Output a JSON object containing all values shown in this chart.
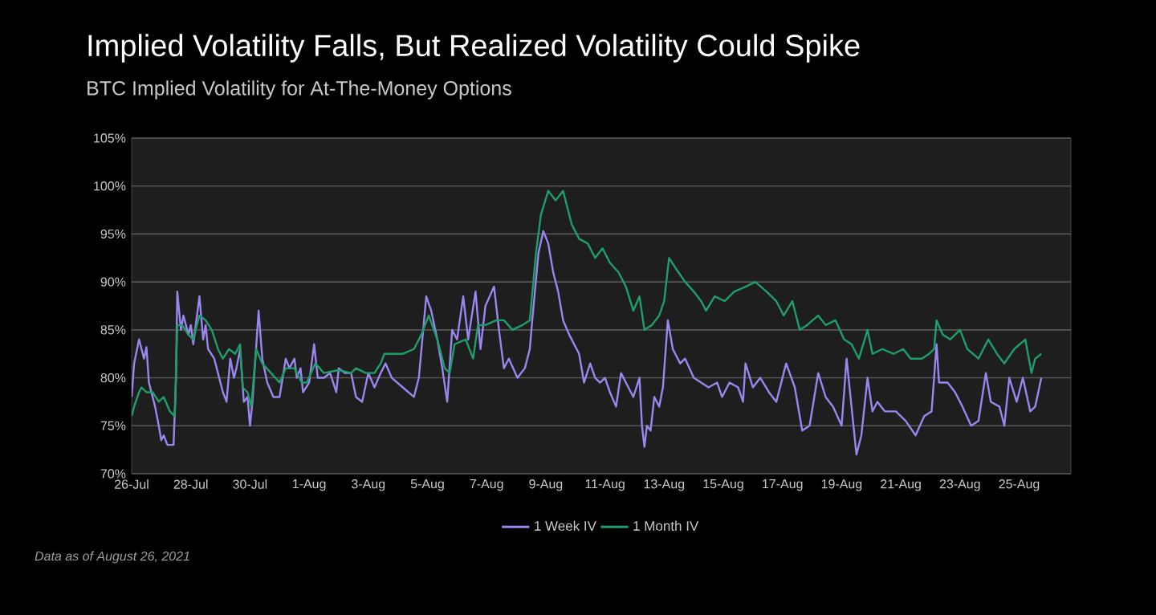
{
  "chart_data": {
    "type": "line",
    "title": "Implied Volatility Falls, But Realized Volatility Could Spike",
    "subtitle": "BTC Implied Volatility for At-The-Money Options",
    "annotations": [
      "Data as of August 26, 2021"
    ],
    "xlim": [
      "2021-07-26",
      "2021-08-26T18:00"
    ],
    "xticks": [
      {
        "value": "2021-07-26",
        "label": "26-Jul"
      },
      {
        "value": "2021-07-28",
        "label": "28-Jul"
      },
      {
        "value": "2021-07-30",
        "label": "30-Jul"
      },
      {
        "value": "2021-08-01",
        "label": "1-Aug"
      },
      {
        "value": "2021-08-03",
        "label": "3-Aug"
      },
      {
        "value": "2021-08-05",
        "label": "5-Aug"
      },
      {
        "value": "2021-08-07",
        "label": "7-Aug"
      },
      {
        "value": "2021-08-09",
        "label": "9-Aug"
      },
      {
        "value": "2021-08-11",
        "label": "11-Aug"
      },
      {
        "value": "2021-08-13",
        "label": "13-Aug"
      },
      {
        "value": "2021-08-15",
        "label": "15-Aug"
      },
      {
        "value": "2021-08-17",
        "label": "17-Aug"
      },
      {
        "value": "2021-08-19",
        "label": "19-Aug"
      },
      {
        "value": "2021-08-21",
        "label": "21-Aug"
      },
      {
        "value": "2021-08-23",
        "label": "23-Aug"
      },
      {
        "value": "2021-08-25",
        "label": "25-Aug"
      }
    ],
    "ylim": [
      70,
      105
    ],
    "yticks": [
      {
        "value": 70,
        "label": "70%"
      },
      {
        "value": 75,
        "label": "75%"
      },
      {
        "value": 80,
        "label": "80%"
      },
      {
        "value": 85,
        "label": "85%"
      },
      {
        "value": 90,
        "label": "90%"
      },
      {
        "value": 95,
        "label": "95%"
      },
      {
        "value": 100,
        "label": "100%"
      },
      {
        "value": 105,
        "label": "105%"
      }
    ],
    "grid": "y",
    "legend": "bottom",
    "series": [
      {
        "name": "1 Week IV",
        "color": "#9b86f0",
        "x": [
          "2021-07-26T00:00",
          "2021-07-26T02:00",
          "2021-07-26T06:00",
          "2021-07-26T10:00",
          "2021-07-26T12:00",
          "2021-07-26T14:00",
          "2021-07-26T19:00",
          "2021-07-26T22:00",
          "2021-07-27T00:00",
          "2021-07-27T02:00",
          "2021-07-27T05:00",
          "2021-07-27T10:00",
          "2021-07-27T12:00",
          "2021-07-27T13:00",
          "2021-07-27T16:00",
          "2021-07-27T18:00",
          "2021-07-27T22:00",
          "2021-07-28T00:00",
          "2021-07-28T02:00",
          "2021-07-28T07:00",
          "2021-07-28T10:00",
          "2021-07-28T12:00",
          "2021-07-28T14:00",
          "2021-07-28T19:00",
          "2021-07-28T23:00",
          "2021-07-29T02:00",
          "2021-07-29T05:00",
          "2021-07-29T08:00",
          "2021-07-29T11:00",
          "2021-07-29T13:00",
          "2021-07-29T16:00",
          "2021-07-29T19:00",
          "2021-07-29T22:00",
          "2021-07-30T00:00",
          "2021-07-30T02:00",
          "2021-07-30T07:00",
          "2021-07-30T10:00",
          "2021-07-30T14:00",
          "2021-07-30T19:00",
          "2021-07-31T00:00",
          "2021-07-31T05:00",
          "2021-07-31T08:00",
          "2021-07-31T12:00",
          "2021-07-31T14:00",
          "2021-07-31T17:00",
          "2021-07-31T19:00",
          "2021-08-01T00:00",
          "2021-08-01T04:00",
          "2021-08-01T07:00",
          "2021-08-01T12:00",
          "2021-08-01T17:00",
          "2021-08-01T22:00",
          "2021-08-02T00:00",
          "2021-08-02T05:00",
          "2021-08-02T10:00",
          "2021-08-02T14:00",
          "2021-08-02T19:00",
          "2021-08-03T00:00",
          "2021-08-03T05:00",
          "2021-08-03T10:00",
          "2021-08-03T14:00",
          "2021-08-03T19:00",
          "2021-08-04T04:00",
          "2021-08-04T13:00",
          "2021-08-04T17:00",
          "2021-08-04T23:00",
          "2021-08-05T03:00",
          "2021-08-05T08:00",
          "2021-08-05T12:00",
          "2021-08-05T16:00",
          "2021-08-05T20:00",
          "2021-08-06T00:00",
          "2021-08-06T05:00",
          "2021-08-06T09:00",
          "2021-08-06T15:00",
          "2021-08-06T19:00",
          "2021-08-06T23:00",
          "2021-08-07T06:00",
          "2021-08-07T10:00",
          "2021-08-07T14:00",
          "2021-08-07T18:00",
          "2021-08-08T01:00",
          "2021-08-08T07:00",
          "2021-08-08T11:00",
          "2021-08-08T13:00",
          "2021-08-08T18:00",
          "2021-08-08T22:00",
          "2021-08-09T02:00",
          "2021-08-09T06:00",
          "2021-08-09T10:00",
          "2021-08-09T14:00",
          "2021-08-09T19:00",
          "2021-08-09T23:00",
          "2021-08-10T03:00",
          "2021-08-10T07:00",
          "2021-08-10T12:00",
          "2021-08-10T16:00",
          "2021-08-10T20:00",
          "2021-08-11T00:00",
          "2021-08-11T04:00",
          "2021-08-11T09:00",
          "2021-08-11T13:00",
          "2021-08-11T19:00",
          "2021-08-11T23:00",
          "2021-08-12T04:00",
          "2021-08-12T06:00",
          "2021-08-12T08:00",
          "2021-08-12T10:00",
          "2021-08-12T13:00",
          "2021-08-12T16:00",
          "2021-08-12T20:00",
          "2021-08-12T23:00",
          "2021-08-13T03:00",
          "2021-08-13T07:00",
          "2021-08-13T13:00",
          "2021-08-13T17:00",
          "2021-08-14T00:00",
          "2021-08-14T06:00",
          "2021-08-14T12:00",
          "2021-08-14T19:00",
          "2021-08-14T23:00",
          "2021-08-15T05:00",
          "2021-08-15T12:00",
          "2021-08-15T16:00",
          "2021-08-15T18:00",
          "2021-08-16T00:00",
          "2021-08-16T06:00",
          "2021-08-16T13:00",
          "2021-08-16T19:00",
          "2021-08-17T03:00",
          "2021-08-17T10:00",
          "2021-08-17T16:00",
          "2021-08-17T22:00",
          "2021-08-18T05:00",
          "2021-08-18T11:00",
          "2021-08-18T17:00",
          "2021-08-19T00:00",
          "2021-08-19T04:00",
          "2021-08-19T08:00",
          "2021-08-19T12:00",
          "2021-08-19T16:00",
          "2021-08-19T21:00",
          "2021-08-20T01:00",
          "2021-08-20T05:00",
          "2021-08-20T11:00",
          "2021-08-20T20:00",
          "2021-08-21T04:00",
          "2021-08-21T12:00",
          "2021-08-21T19:00",
          "2021-08-22T01:00",
          "2021-08-22T05:00",
          "2021-08-22T07:00",
          "2021-08-22T14:00",
          "2021-08-22T20:00",
          "2021-08-23T02:00",
          "2021-08-23T09:00",
          "2021-08-23T15:00",
          "2021-08-23T21:00",
          "2021-08-24T01:00",
          "2021-08-24T08:00",
          "2021-08-24T12:00",
          "2021-08-24T16:00",
          "2021-08-24T22:00",
          "2021-08-25T03:00",
          "2021-08-25T09:00",
          "2021-08-25T13:00",
          "2021-08-25T18:00"
        ],
        "values": [
          78,
          81.5,
          84,
          82,
          83.2,
          79.5,
          77,
          75,
          73.5,
          74,
          73,
          73,
          80,
          89,
          85,
          86.5,
          84.5,
          85.5,
          83.5,
          88.5,
          84,
          85.5,
          83,
          82,
          80,
          78.5,
          77.5,
          82,
          80,
          81,
          83,
          77.5,
          78,
          75,
          77.5,
          87,
          82,
          79.5,
          78,
          78,
          82,
          81,
          82,
          80,
          81,
          78.5,
          79.5,
          83.5,
          80,
          80,
          80.5,
          78.5,
          81,
          80.5,
          80.5,
          78,
          77.5,
          80.5,
          79,
          80.5,
          81.5,
          80,
          79,
          78,
          80,
          88.5,
          87,
          84,
          81,
          77.5,
          85,
          84,
          88.5,
          84,
          89,
          83,
          87.5,
          89.5,
          85,
          81,
          82,
          80,
          81,
          83,
          86,
          93,
          95.3,
          94,
          91,
          89,
          86,
          84.5,
          83.5,
          82.5,
          79.5,
          81.5,
          80,
          79.5,
          80,
          78.5,
          77,
          80.5,
          79,
          78,
          80,
          75,
          72.8,
          75,
          74.5,
          78,
          77,
          79,
          86,
          83,
          81.5,
          82,
          80,
          79.5,
          79,
          79.5,
          78,
          79.5,
          79,
          77.5,
          81.5,
          79,
          80,
          78.5,
          77.5,
          81.5,
          79,
          74.5,
          75,
          80.5,
          78,
          77,
          75,
          82,
          77,
          72,
          74,
          80,
          76.5,
          77.5,
          76.5,
          76.5,
          75.5,
          74,
          76,
          76.5,
          83.5,
          79.5,
          79.5,
          78.5,
          77,
          75,
          75.5,
          80.5,
          77.5,
          77,
          75,
          80,
          77.5,
          80,
          76.5,
          77,
          80
        ]
      },
      {
        "name": "1 Month IV",
        "color": "#1e9e6a",
        "x": [
          "2021-07-26T00:00",
          "2021-07-26T02:00",
          "2021-07-26T06:00",
          "2021-07-26T08:00",
          "2021-07-26T12:00",
          "2021-07-26T17:00",
          "2021-07-26T22:00",
          "2021-07-27T02:00",
          "2021-07-27T07:00",
          "2021-07-27T11:00",
          "2021-07-27T13:00",
          "2021-07-27T17:00",
          "2021-07-27T22:00",
          "2021-07-28T02:00",
          "2021-07-28T07:00",
          "2021-07-28T12:00",
          "2021-07-28T17:00",
          "2021-07-28T22:00",
          "2021-07-29T02:00",
          "2021-07-29T07:00",
          "2021-07-29T12:00",
          "2021-07-29T16:00",
          "2021-07-29T18:00",
          "2021-07-29T22:00",
          "2021-07-30T01:00",
          "2021-07-30T05:00",
          "2021-07-30T10:00",
          "2021-07-30T17:00",
          "2021-07-31T00:00",
          "2021-07-31T05:00",
          "2021-07-31T12:00",
          "2021-07-31T18:00",
          "2021-07-31T22:00",
          "2021-08-01T05:00",
          "2021-08-01T12:00",
          "2021-08-02T00:00",
          "2021-08-02T10:00",
          "2021-08-02T14:00",
          "2021-08-02T22:00",
          "2021-08-03T05:00",
          "2021-08-03T10:00",
          "2021-08-03T13:00",
          "2021-08-03T20:00",
          "2021-08-04T04:00",
          "2021-08-04T13:00",
          "2021-08-04T19:00",
          "2021-08-05T01:00",
          "2021-08-05T08:00",
          "2021-08-05T14:00",
          "2021-08-05T18:00",
          "2021-08-05T22:00",
          "2021-08-06T07:00",
          "2021-08-06T13:00",
          "2021-08-06T17:00",
          "2021-08-06T23:00",
          "2021-08-07T08:00",
          "2021-08-07T14:00",
          "2021-08-07T21:00",
          "2021-08-08T05:00",
          "2021-08-08T11:00",
          "2021-08-08T16:00",
          "2021-08-08T20:00",
          "2021-08-09T02:00",
          "2021-08-09T08:00",
          "2021-08-09T14:00",
          "2021-08-09T21:00",
          "2021-08-10T03:00",
          "2021-08-10T10:00",
          "2021-08-10T16:00",
          "2021-08-10T22:00",
          "2021-08-11T04:00",
          "2021-08-11T11:00",
          "2021-08-11T17:00",
          "2021-08-11T23:00",
          "2021-08-12T04:00",
          "2021-08-12T08:00",
          "2021-08-12T14:00",
          "2021-08-12T20:00",
          "2021-08-13T00:00",
          "2021-08-13T04:00",
          "2021-08-13T09:00",
          "2021-08-13T17:00",
          "2021-08-14T00:00",
          "2021-08-14T06:00",
          "2021-08-14T10:00",
          "2021-08-14T17:00",
          "2021-08-15T01:00",
          "2021-08-15T09:00",
          "2021-08-15T18:00",
          "2021-08-16T02:00",
          "2021-08-16T11:00",
          "2021-08-16T19:00",
          "2021-08-17T01:00",
          "2021-08-17T08:00",
          "2021-08-17T14:00",
          "2021-08-17T20:00",
          "2021-08-18T05:00",
          "2021-08-18T11:00",
          "2021-08-18T19:00",
          "2021-08-19T02:00",
          "2021-08-19T08:00",
          "2021-08-19T14:00",
          "2021-08-19T21:00",
          "2021-08-20T01:00",
          "2021-08-20T09:00",
          "2021-08-20T18:00",
          "2021-08-21T02:00",
          "2021-08-21T08:00",
          "2021-08-21T17:00",
          "2021-08-21T23:00",
          "2021-08-22T03:00",
          "2021-08-22T05:00",
          "2021-08-22T10:00",
          "2021-08-22T16:00",
          "2021-08-23T00:00",
          "2021-08-23T06:00",
          "2021-08-23T15:00",
          "2021-08-23T23:00",
          "2021-08-24T06:00",
          "2021-08-24T12:00",
          "2021-08-24T20:00",
          "2021-08-25T05:00",
          "2021-08-25T10:00",
          "2021-08-25T13:00",
          "2021-08-25T18:00"
        ],
        "values": [
          76,
          77,
          78.5,
          79,
          78.5,
          78.5,
          77.5,
          78,
          76.5,
          76,
          85.5,
          85.5,
          84.5,
          84,
          86.5,
          86,
          85,
          83,
          82,
          83,
          82.5,
          83.5,
          79,
          78.5,
          77,
          83,
          81.5,
          80.5,
          79.5,
          81,
          81,
          79.5,
          79.5,
          81.5,
          80.5,
          80.8,
          80.5,
          81,
          80.5,
          80.5,
          81.5,
          82.5,
          82.5,
          82.5,
          83,
          84.5,
          86.5,
          84,
          81,
          80.5,
          83.5,
          84,
          82,
          85.5,
          85.5,
          86,
          86,
          85,
          85.5,
          86,
          93,
          97,
          99.5,
          98.5,
          99.5,
          96,
          94.5,
          94,
          92.5,
          93.5,
          92,
          91,
          89.5,
          87,
          88.5,
          85,
          85.5,
          86.5,
          88,
          92.5,
          91.5,
          90,
          89,
          88,
          87,
          88.5,
          88,
          89,
          89.5,
          90,
          89,
          88,
          86.5,
          88,
          85,
          85.5,
          86.5,
          85.5,
          86,
          84,
          83.5,
          82,
          85,
          82.5,
          83,
          82.5,
          83,
          82,
          82,
          82.5,
          83,
          86,
          84.5,
          84,
          85,
          83,
          82,
          84,
          82.5,
          81.5,
          83,
          84,
          80.5,
          82,
          82.5
        ]
      }
    ]
  }
}
